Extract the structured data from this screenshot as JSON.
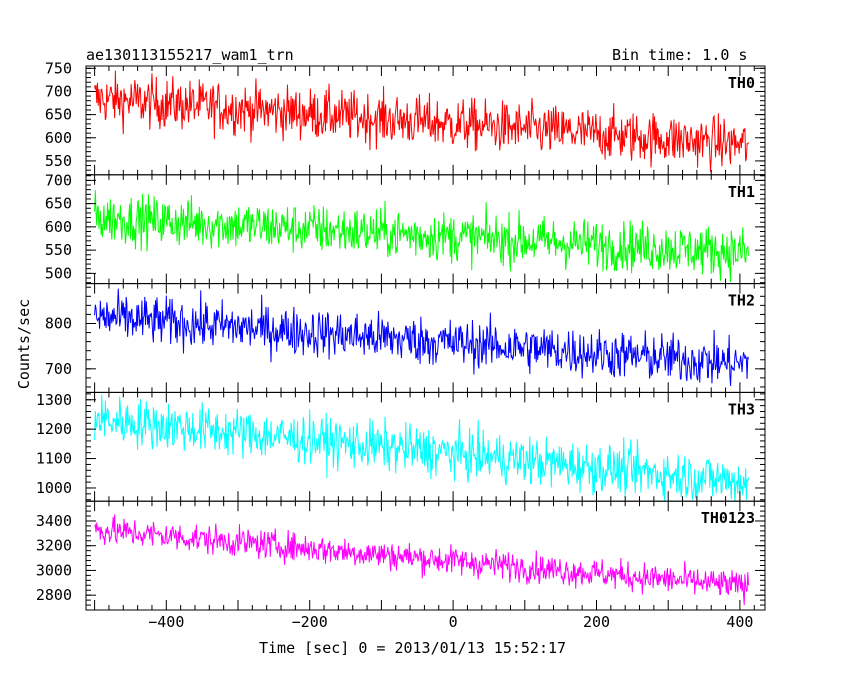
{
  "header": {
    "title": "ae130113155217_wam1_trn",
    "bin_time": "Bin time: 1.0 s"
  },
  "chart_data": {
    "type": "line",
    "title": "ae130113155217_wam1_trn",
    "xlabel": "Time [sec] 0 = 2013/01/13 15:52:17",
    "ylabel": "Counts/sec",
    "xlim": [
      -512,
      435
    ],
    "x_ticks": [
      -400,
      -200,
      0,
      200,
      400
    ],
    "x_start": -500,
    "x_end": 412,
    "x_step": 1,
    "grid": false,
    "panels": [
      {
        "name": "TH0",
        "color": "#ff0000",
        "ylim": [
          520,
          755
        ],
        "y_ticks": [
          550,
          600,
          650,
          700,
          750
        ],
        "trend_start": 685,
        "trend_end": 585,
        "noise": 28
      },
      {
        "name": "TH1",
        "color": "#00ff00",
        "ylim": [
          478,
          712
        ],
        "y_ticks": [
          500,
          550,
          600,
          650,
          700
        ],
        "trend_start": 620,
        "trend_end": 545,
        "noise": 27
      },
      {
        "name": "TH2",
        "color": "#0000ff",
        "ylim": [
          648,
          888
        ],
        "y_ticks": [
          700,
          800
        ],
        "trend_start": 815,
        "trend_end": 710,
        "noise": 27
      },
      {
        "name": "TH3",
        "color": "#00ffff",
        "ylim": [
          955,
          1325
        ],
        "y_ticks": [
          1000,
          1100,
          1200,
          1300
        ],
        "trend_start": 1235,
        "trend_end": 1020,
        "noise": 42
      },
      {
        "name": "TH0123",
        "color": "#ff00ff",
        "ylim": [
          2680,
          3560
        ],
        "y_ticks": [
          2800,
          3000,
          3200,
          3400
        ],
        "trend_start": 3330,
        "trend_end": 2870,
        "noise": 60
      }
    ]
  }
}
